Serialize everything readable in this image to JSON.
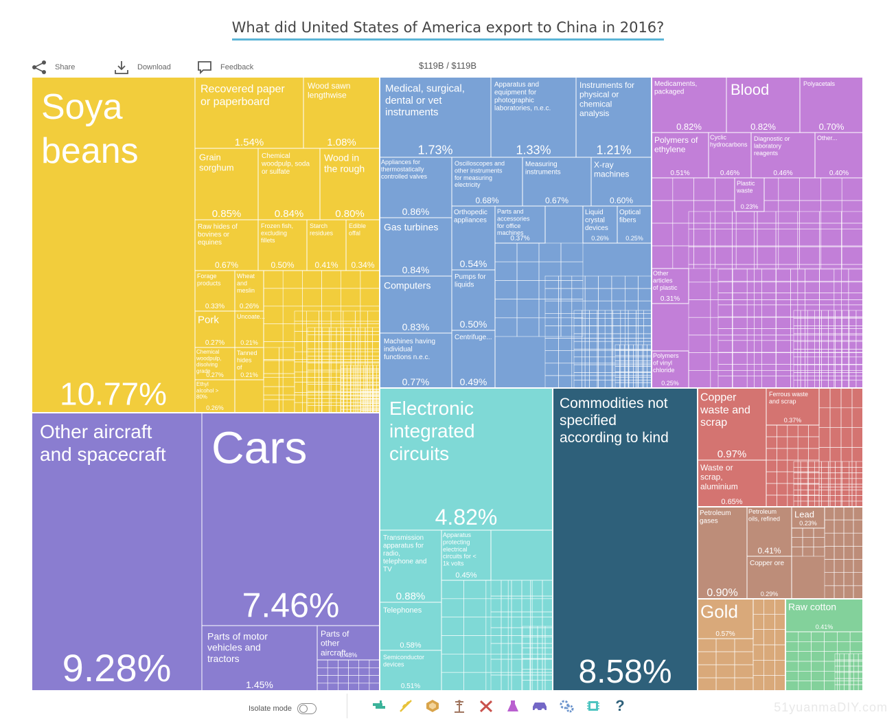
{
  "title": "What did United States of America export to China in 2016?",
  "toolbar": {
    "share": "Share",
    "download": "Download",
    "feedback": "Feedback"
  },
  "total_label": "$119B / $119B",
  "footer": {
    "isolate_label": "Isolate mode",
    "watermark": "51yuanmaDIY.com"
  },
  "category_icons": [
    "textiles-icon",
    "vegetables-icon",
    "animal-products-icon",
    "minerals-icon",
    "metals-icon",
    "chemicals-icon",
    "vehicles-icon",
    "machinery-icon",
    "electronics-icon",
    "unknown-icon"
  ],
  "colors": {
    "vegetable": "#f2cd3c",
    "transport": "#8a7dd0",
    "instruments": "#7aa2d6",
    "electronics": "#7fd9d6",
    "unspecified": "#2e607a",
    "chemicals": "#c27fd8",
    "metals": "#d47471",
    "minerals": "#bd8d79",
    "stone": "#d9a97a",
    "textiles": "#83d19b"
  },
  "chart_data": {
    "type": "treemap",
    "total": "$119B",
    "items": [
      {
        "label": "Soya beans",
        "value": 10.77,
        "group": "vegetable"
      },
      {
        "label": "Recovered paper or paperboard",
        "value": 1.54,
        "group": "vegetable"
      },
      {
        "label": "Wood sawn lengthwise",
        "value": 1.08,
        "group": "vegetable"
      },
      {
        "label": "Grain sorghum",
        "value": 0.85,
        "group": "vegetable"
      },
      {
        "label": "Chemical woodpulp, soda or sulfate",
        "value": 0.84,
        "group": "vegetable"
      },
      {
        "label": "Wood in the rough",
        "value": 0.8,
        "group": "vegetable"
      },
      {
        "label": "Raw hides of bovines or equines",
        "value": 0.67,
        "group": "vegetable"
      },
      {
        "label": "Frozen fish, excluding fillets",
        "value": 0.5,
        "group": "vegetable"
      },
      {
        "label": "Starch residues",
        "value": 0.41,
        "group": "vegetable"
      },
      {
        "label": "Edible offal",
        "value": 0.34,
        "group": "vegetable"
      },
      {
        "label": "Forage products",
        "value": 0.33,
        "group": "vegetable"
      },
      {
        "label": "Wheat and meslin",
        "value": 0.26,
        "group": "vegetable"
      },
      {
        "label": "Pork",
        "value": 0.27,
        "group": "vegetable"
      },
      {
        "label": "Chemical woodpulp, disolving grade",
        "value": 0.27,
        "group": "vegetable"
      },
      {
        "label": "Ethyl alcohol > 80%",
        "value": 0.26,
        "group": "vegetable"
      },
      {
        "label": "Uncoate...",
        "value": 0.21,
        "group": "vegetable"
      },
      {
        "label": "Tanned hides of bovine...",
        "value": 0.21,
        "group": "vegetable"
      },
      {
        "label": "Other aircraft and spacecraft",
        "value": 9.28,
        "group": "transport"
      },
      {
        "label": "Cars",
        "value": 7.46,
        "group": "transport"
      },
      {
        "label": "Parts of motor vehicles and tractors",
        "value": 1.45,
        "group": "transport"
      },
      {
        "label": "Parts of other aircraft",
        "value": 0.48,
        "group": "transport"
      },
      {
        "label": "Medical, surgical, dental or vet instruments",
        "value": 1.73,
        "group": "instruments"
      },
      {
        "label": "Apparatus and equipment for photographic laboratories, n.e.c.",
        "value": 1.33,
        "group": "instruments"
      },
      {
        "label": "Instruments for physical or chemical analysis",
        "value": 1.21,
        "group": "instruments"
      },
      {
        "label": "Appliances for thermostatically controlled valves",
        "value": 0.86,
        "group": "instruments"
      },
      {
        "label": "Oscilloscopes and other instruments for measuring electricity",
        "value": 0.68,
        "group": "instruments"
      },
      {
        "label": "Measuring instruments",
        "value": 0.67,
        "group": "instruments"
      },
      {
        "label": "X-ray machines",
        "value": 0.6,
        "group": "instruments"
      },
      {
        "label": "Gas turbines",
        "value": 0.84,
        "group": "instruments"
      },
      {
        "label": "Orthopedic appliances",
        "value": 0.54,
        "group": "instruments"
      },
      {
        "label": "Parts and accessories for office machines",
        "value": 0.37,
        "group": "instruments"
      },
      {
        "label": "Liquid crystal devices",
        "value": 0.26,
        "group": "instruments"
      },
      {
        "label": "Optical fibers",
        "value": 0.25,
        "group": "instruments"
      },
      {
        "label": "Computers",
        "value": 0.83,
        "group": "instruments"
      },
      {
        "label": "Pumps for liquids",
        "value": 0.5,
        "group": "instruments"
      },
      {
        "label": "Machines having individual functions n.e.c.",
        "value": 0.77,
        "group": "instruments"
      },
      {
        "label": "Centrifuge...",
        "value": 0.49,
        "group": "instruments"
      },
      {
        "label": "Electronic integrated circuits",
        "value": 4.82,
        "group": "electronics"
      },
      {
        "label": "Transmission apparatus for radio, telephone and TV",
        "value": 0.88,
        "group": "electronics"
      },
      {
        "label": "Apparatus protecting electrical circuits for < 1k volts",
        "value": 0.45,
        "group": "electronics"
      },
      {
        "label": "Telephones",
        "value": 0.58,
        "group": "electronics"
      },
      {
        "label": "Semiconductor devices",
        "value": 0.51,
        "group": "electronics"
      },
      {
        "label": "Commodities not specified according to kind",
        "value": 8.58,
        "group": "unspecified"
      },
      {
        "label": "Medicaments, packaged",
        "value": 0.82,
        "group": "chemicals"
      },
      {
        "label": "Blood",
        "value": 0.82,
        "group": "chemicals"
      },
      {
        "label": "Polyacetals",
        "value": 0.7,
        "group": "chemicals"
      },
      {
        "label": "Polymers of ethylene",
        "value": 0.51,
        "group": "chemicals"
      },
      {
        "label": "Cyclic hydrocarbons",
        "value": 0.46,
        "group": "chemicals"
      },
      {
        "label": "Diagnostic or laboratory reagents",
        "value": 0.46,
        "group": "chemicals"
      },
      {
        "label": "Other...",
        "value": 0.4,
        "group": "chemicals"
      },
      {
        "label": "Plastic waste",
        "value": 0.23,
        "group": "chemicals"
      },
      {
        "label": "Other articles of plastic",
        "value": 0.31,
        "group": "chemicals"
      },
      {
        "label": "Polymers of vinyl chloride",
        "value": 0.25,
        "group": "chemicals"
      },
      {
        "label": "Copper waste and scrap",
        "value": 0.97,
        "group": "metals"
      },
      {
        "label": "Waste or scrap, aluminium",
        "value": 0.65,
        "group": "metals"
      },
      {
        "label": "Ferrous waste and scrap",
        "value": 0.37,
        "group": "metals"
      },
      {
        "label": "Petroleum gases",
        "value": 0.9,
        "group": "minerals"
      },
      {
        "label": "Petroleum oils, refined",
        "value": 0.41,
        "group": "minerals"
      },
      {
        "label": "Lead ore",
        "value": 0.23,
        "group": "minerals"
      },
      {
        "label": "Copper ore",
        "value": 0.29,
        "group": "minerals"
      },
      {
        "label": "Gold",
        "value": 0.57,
        "group": "stone"
      },
      {
        "label": "Raw cotton",
        "value": 0.41,
        "group": "textiles"
      }
    ]
  }
}
